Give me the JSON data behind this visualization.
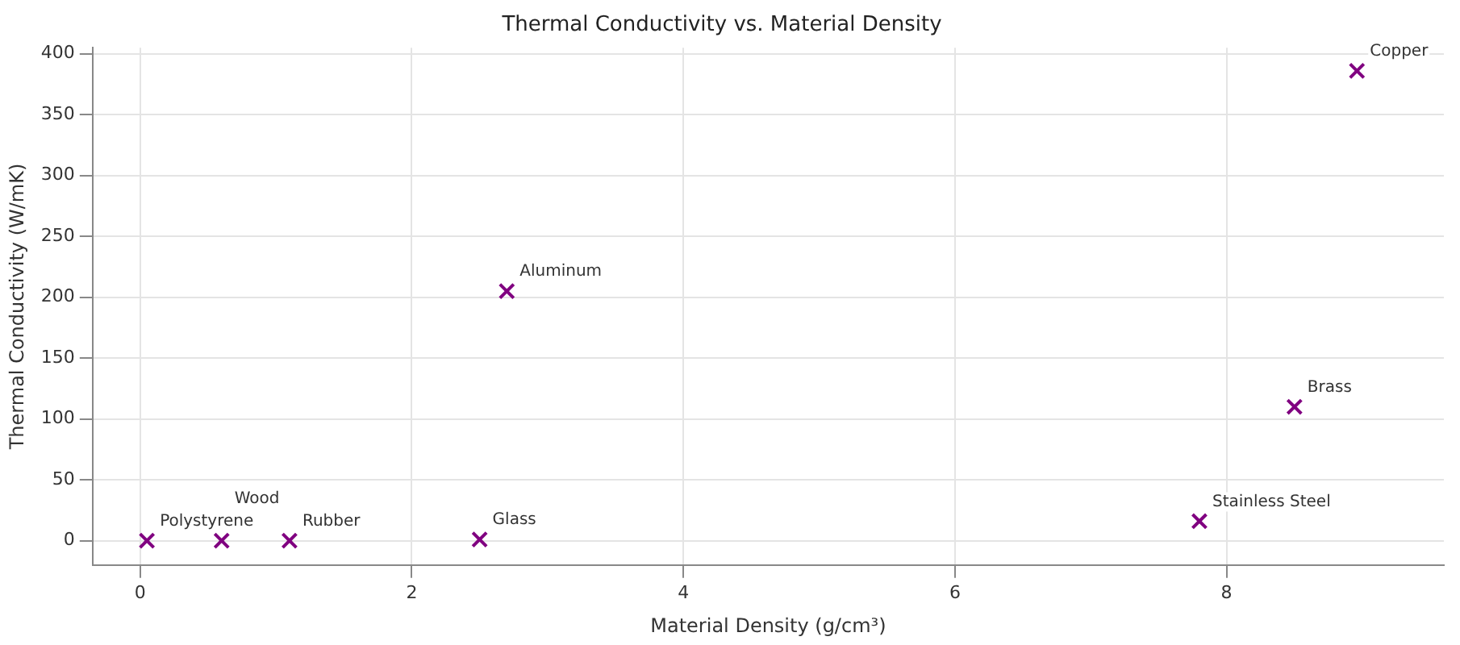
{
  "chart_data": {
    "type": "scatter",
    "title": "Thermal Conductivity vs. Material Density",
    "xlabel": "Material Density (g/cm³)",
    "ylabel": "Thermal Conductivity (W/mK)",
    "x": [
      0.05,
      0.6,
      1.1,
      2.5,
      2.7,
      7.8,
      8.5,
      8.96
    ],
    "series": [
      {
        "color": "#800080",
        "values": [
          0,
          0,
          0,
          1,
          205,
          16,
          110,
          386
        ]
      }
    ],
    "xlim": [
      -0.35,
      9.6
    ],
    "xticks": [
      0,
      2,
      4,
      6,
      8
    ],
    "ylim": [
      -20,
      405
    ],
    "yticks": [
      0,
      50,
      100,
      150,
      200,
      250,
      300,
      350,
      400
    ],
    "grid": true,
    "legend": false,
    "marker": "cross",
    "annotations": [
      {
        "text": "Polystyrene",
        "x": 0.05,
        "y": 0
      },
      {
        "text": "Wood",
        "x": 0.6,
        "y": 0
      },
      {
        "text": "Rubber",
        "x": 1.1,
        "y": 0
      },
      {
        "text": "Glass",
        "x": 2.5,
        "y": 1
      },
      {
        "text": "Aluminum",
        "x": 2.7,
        "y": 205
      },
      {
        "text": "Stainless Steel",
        "x": 7.8,
        "y": 16
      },
      {
        "text": "Brass",
        "x": 8.5,
        "y": 110
      },
      {
        "text": "Copper",
        "x": 8.96,
        "y": 386
      }
    ]
  }
}
